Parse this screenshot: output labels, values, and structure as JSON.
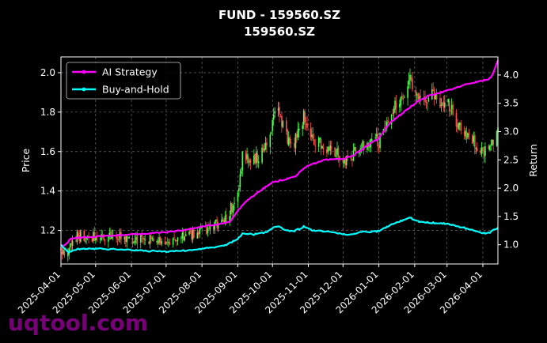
{
  "chart_data": {
    "type": "candlestick-line",
    "title": "FUND - 159560.SZ",
    "subtitle": "159560.SZ",
    "ylabel_left": "Price",
    "ylabel_right": "Return",
    "xlabel": "",
    "xlim": [
      "2025-04-01",
      "2026-04-14"
    ],
    "ylim_left": [
      1.03,
      2.08
    ],
    "ylim_right": [
      0.66,
      4.32
    ],
    "x_ticks": [
      "2025-04-01",
      "2025-05-01",
      "2025-06-01",
      "2025-07-01",
      "2025-08-01",
      "2025-09-01",
      "2025-10-01",
      "2025-11-01",
      "2025-12-01",
      "2026-01-01",
      "2026-02-01",
      "2026-03-01",
      "2026-04-01"
    ],
    "y_ticks_left": [
      "1.2",
      "1.4",
      "1.6",
      "1.8",
      "2.0"
    ],
    "y_ticks_right": [
      "1.0",
      "1.5",
      "2.0",
      "2.5",
      "3.0",
      "3.5",
      "4.0"
    ],
    "grid": true,
    "legend_position": "top-left",
    "colors": {
      "up": "#4cff4c",
      "down": "#ff4d4d",
      "strategy": "#ff00ff",
      "buyhold": "#00ffff",
      "background": "#000000"
    },
    "price_keypoints": [
      {
        "date": "2025-04-01",
        "price": 1.11
      },
      {
        "date": "2025-04-07",
        "price": 1.09
      },
      {
        "date": "2025-04-15",
        "price": 1.17
      },
      {
        "date": "2025-05-01",
        "price": 1.17
      },
      {
        "date": "2025-05-20",
        "price": 1.17
      },
      {
        "date": "2025-06-15",
        "price": 1.15
      },
      {
        "date": "2025-07-01",
        "price": 1.14
      },
      {
        "date": "2025-07-20",
        "price": 1.17
      },
      {
        "date": "2025-08-01",
        "price": 1.2
      },
      {
        "date": "2025-08-20",
        "price": 1.24
      },
      {
        "date": "2025-09-01",
        "price": 1.38
      },
      {
        "date": "2025-09-05",
        "price": 1.58
      },
      {
        "date": "2025-09-15",
        "price": 1.55
      },
      {
        "date": "2025-09-25",
        "price": 1.62
      },
      {
        "date": "2025-10-05",
        "price": 1.82
      },
      {
        "date": "2025-10-12",
        "price": 1.68
      },
      {
        "date": "2025-10-20",
        "price": 1.65
      },
      {
        "date": "2025-10-28",
        "price": 1.78
      },
      {
        "date": "2025-11-05",
        "price": 1.66
      },
      {
        "date": "2025-11-15",
        "price": 1.63
      },
      {
        "date": "2025-11-25",
        "price": 1.6
      },
      {
        "date": "2025-12-05",
        "price": 1.55
      },
      {
        "date": "2025-12-15",
        "price": 1.62
      },
      {
        "date": "2026-01-01",
        "price": 1.66
      },
      {
        "date": "2026-01-10",
        "price": 1.78
      },
      {
        "date": "2026-01-20",
        "price": 1.88
      },
      {
        "date": "2026-01-28",
        "price": 1.96
      },
      {
        "date": "2026-02-05",
        "price": 1.88
      },
      {
        "date": "2026-02-15",
        "price": 1.88
      },
      {
        "date": "2026-03-01",
        "price": 1.84
      },
      {
        "date": "2026-03-10",
        "price": 1.75
      },
      {
        "date": "2026-03-20",
        "price": 1.68
      },
      {
        "date": "2026-04-01",
        "price": 1.6
      },
      {
        "date": "2026-04-07",
        "price": 1.62
      },
      {
        "date": "2026-04-14",
        "price": 1.72
      }
    ],
    "series": [
      {
        "name": "AI Strategy",
        "color": "#ff00ff",
        "points": [
          {
            "date": "2025-04-01",
            "value": 1.0
          },
          {
            "date": "2025-04-05",
            "value": 0.98
          },
          {
            "date": "2025-04-09",
            "value": 1.1
          },
          {
            "date": "2025-04-20",
            "value": 1.13
          },
          {
            "date": "2025-05-15",
            "value": 1.16
          },
          {
            "date": "2025-06-15",
            "value": 1.2
          },
          {
            "date": "2025-07-01",
            "value": 1.22
          },
          {
            "date": "2025-07-20",
            "value": 1.27
          },
          {
            "date": "2025-08-01",
            "value": 1.32
          },
          {
            "date": "2025-08-25",
            "value": 1.4
          },
          {
            "date": "2025-09-01",
            "value": 1.6
          },
          {
            "date": "2025-09-10",
            "value": 1.8
          },
          {
            "date": "2025-09-20",
            "value": 1.95
          },
          {
            "date": "2025-10-01",
            "value": 2.1
          },
          {
            "date": "2025-10-20",
            "value": 2.2
          },
          {
            "date": "2025-11-01",
            "value": 2.4
          },
          {
            "date": "2025-11-15",
            "value": 2.5
          },
          {
            "date": "2025-12-01",
            "value": 2.52
          },
          {
            "date": "2025-12-10",
            "value": 2.58
          },
          {
            "date": "2025-12-20",
            "value": 2.72
          },
          {
            "date": "2026-01-01",
            "value": 2.88
          },
          {
            "date": "2026-01-10",
            "value": 3.15
          },
          {
            "date": "2026-01-20",
            "value": 3.3
          },
          {
            "date": "2026-02-01",
            "value": 3.5
          },
          {
            "date": "2026-02-15",
            "value": 3.65
          },
          {
            "date": "2026-03-01",
            "value": 3.72
          },
          {
            "date": "2026-03-20",
            "value": 3.85
          },
          {
            "date": "2026-04-01",
            "value": 3.9
          },
          {
            "date": "2026-04-08",
            "value": 3.95
          },
          {
            "date": "2026-04-14",
            "value": 4.25
          }
        ]
      },
      {
        "name": "Buy-and-Hold",
        "color": "#00ffff",
        "points": [
          {
            "date": "2025-04-01",
            "value": 1.0
          },
          {
            "date": "2025-04-07",
            "value": 0.86
          },
          {
            "date": "2025-04-15",
            "value": 0.92
          },
          {
            "date": "2025-05-01",
            "value": 0.93
          },
          {
            "date": "2025-05-20",
            "value": 0.92
          },
          {
            "date": "2025-06-15",
            "value": 0.89
          },
          {
            "date": "2025-07-01",
            "value": 0.88
          },
          {
            "date": "2025-07-20",
            "value": 0.9
          },
          {
            "date": "2025-08-01",
            "value": 0.93
          },
          {
            "date": "2025-08-20",
            "value": 0.98
          },
          {
            "date": "2025-09-01",
            "value": 1.1
          },
          {
            "date": "2025-09-05",
            "value": 1.2
          },
          {
            "date": "2025-09-15",
            "value": 1.18
          },
          {
            "date": "2025-09-25",
            "value": 1.22
          },
          {
            "date": "2025-10-05",
            "value": 1.34
          },
          {
            "date": "2025-10-12",
            "value": 1.26
          },
          {
            "date": "2025-10-20",
            "value": 1.24
          },
          {
            "date": "2025-10-28",
            "value": 1.32
          },
          {
            "date": "2025-11-05",
            "value": 1.25
          },
          {
            "date": "2025-11-15",
            "value": 1.24
          },
          {
            "date": "2025-11-25",
            "value": 1.21
          },
          {
            "date": "2025-12-05",
            "value": 1.17
          },
          {
            "date": "2025-12-15",
            "value": 1.22
          },
          {
            "date": "2026-01-01",
            "value": 1.24
          },
          {
            "date": "2026-01-10",
            "value": 1.34
          },
          {
            "date": "2026-01-20",
            "value": 1.42
          },
          {
            "date": "2026-01-28",
            "value": 1.48
          },
          {
            "date": "2026-02-05",
            "value": 1.4
          },
          {
            "date": "2026-02-15",
            "value": 1.39
          },
          {
            "date": "2026-03-01",
            "value": 1.37
          },
          {
            "date": "2026-03-10",
            "value": 1.32
          },
          {
            "date": "2026-03-20",
            "value": 1.28
          },
          {
            "date": "2026-04-01",
            "value": 1.2
          },
          {
            "date": "2026-04-07",
            "value": 1.22
          },
          {
            "date": "2026-04-14",
            "value": 1.3
          }
        ]
      }
    ]
  },
  "watermark": "uqtool.com"
}
